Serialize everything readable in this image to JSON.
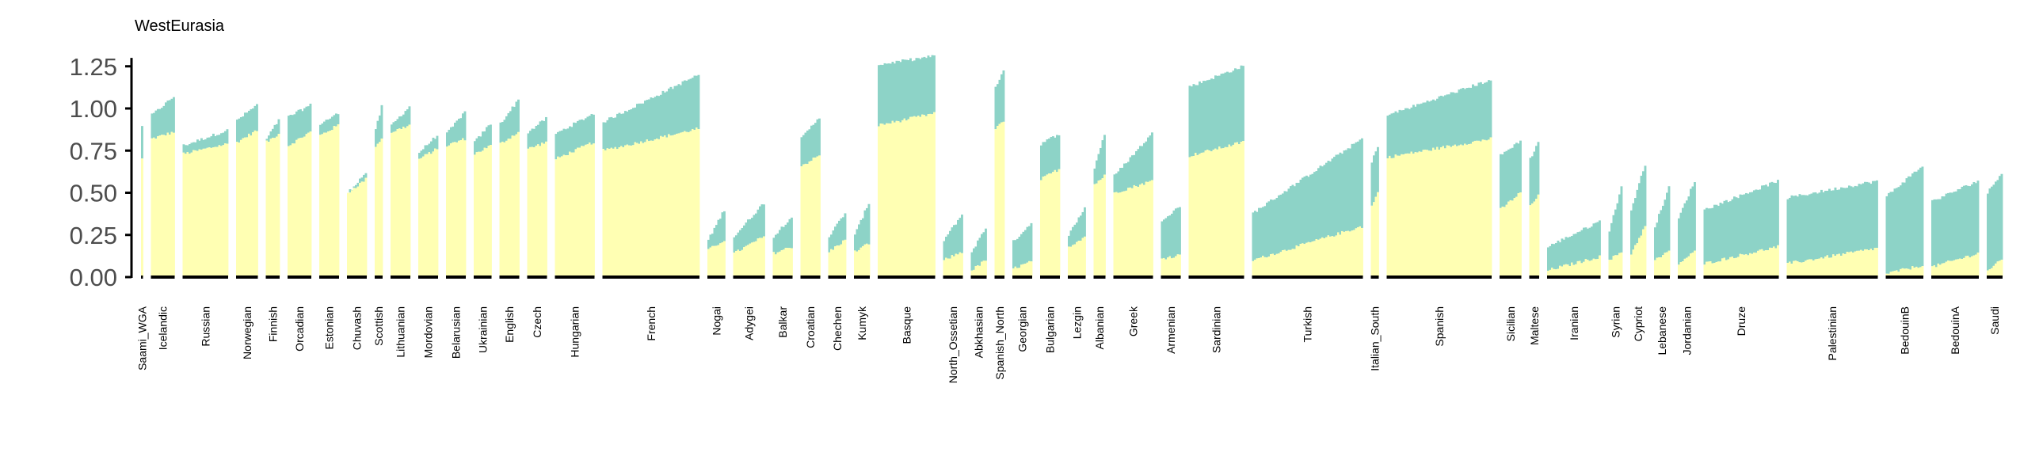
{
  "chart_data": {
    "type": "bar",
    "title": "WestEurasia",
    "xlabel": "",
    "ylabel": "",
    "ylim": [
      0,
      1.3
    ],
    "yticks": [
      "0.00",
      "0.25",
      "0.50",
      "0.75",
      "1.00",
      "1.25"
    ],
    "ytick_values": [
      0,
      0.25,
      0.5,
      0.75,
      1.0,
      1.25
    ],
    "grid": false,
    "legend": "none",
    "stacked": true,
    "series": [
      {
        "name": "",
        "color": "#ffffb3"
      },
      {
        "name": "",
        "color": "#8dd3c7"
      }
    ],
    "colors": {
      "lower": "#ffffb3",
      "upper": "#8dd3c7",
      "group_bar": "#000000"
    },
    "groups": [
      {
        "label": "Saami_WGA",
        "n": 1,
        "lower": [
          0.7,
          0.7
        ],
        "total": [
          0.9,
          0.9
        ]
      },
      {
        "label": "Icelandic",
        "n": 12,
        "lower": [
          0.82,
          0.86
        ],
        "total": [
          0.96,
          1.07
        ]
      },
      {
        "label": "Russian",
        "n": 23,
        "lower": [
          0.73,
          0.79
        ],
        "total": [
          0.78,
          0.87
        ]
      },
      {
        "label": "Norwegian",
        "n": 11,
        "lower": [
          0.8,
          0.87
        ],
        "total": [
          0.93,
          1.02
        ]
      },
      {
        "label": "Finnish",
        "n": 7,
        "lower": [
          0.8,
          0.85
        ],
        "total": [
          0.82,
          0.93
        ]
      },
      {
        "label": "Orcadian",
        "n": 12,
        "lower": [
          0.78,
          0.86
        ],
        "total": [
          0.95,
          1.02
        ]
      },
      {
        "label": "Estonian",
        "n": 10,
        "lower": [
          0.84,
          0.9
        ],
        "total": [
          0.91,
          0.97
        ]
      },
      {
        "label": "Chuvash",
        "n": 10,
        "lower": [
          0.5,
          0.58
        ],
        "total": [
          0.5,
          0.62
        ]
      },
      {
        "label": "Scottish",
        "n": 4,
        "lower": [
          0.78,
          0.82
        ],
        "total": [
          0.87,
          1.01
        ]
      },
      {
        "label": "Lithuanian",
        "n": 10,
        "lower": [
          0.86,
          0.9
        ],
        "total": [
          0.9,
          1.01
        ]
      },
      {
        "label": "Mordovian",
        "n": 10,
        "lower": [
          0.7,
          0.76
        ],
        "total": [
          0.74,
          0.84
        ]
      },
      {
        "label": "Belarusian",
        "n": 10,
        "lower": [
          0.78,
          0.82
        ],
        "total": [
          0.85,
          0.98
        ]
      },
      {
        "label": "Ukrainian",
        "n": 9,
        "lower": [
          0.73,
          0.78
        ],
        "total": [
          0.8,
          0.91
        ]
      },
      {
        "label": "English",
        "n": 10,
        "lower": [
          0.79,
          0.86
        ],
        "total": [
          0.91,
          1.05
        ]
      },
      {
        "label": "Czech",
        "n": 10,
        "lower": [
          0.76,
          0.8
        ],
        "total": [
          0.86,
          0.94
        ]
      },
      {
        "label": "Hungarian",
        "n": 20,
        "lower": [
          0.7,
          0.8
        ],
        "total": [
          0.85,
          0.97
        ]
      },
      {
        "label": "French",
        "n": 49,
        "lower": [
          0.75,
          0.88
        ],
        "total": [
          0.92,
          1.2
        ]
      },
      {
        "label": "Nogai",
        "n": 9,
        "lower": [
          0.16,
          0.22
        ],
        "total": [
          0.22,
          0.4
        ]
      },
      {
        "label": "Adygei",
        "n": 16,
        "lower": [
          0.14,
          0.24
        ],
        "total": [
          0.24,
          0.44
        ]
      },
      {
        "label": "Balkar",
        "n": 10,
        "lower": [
          0.14,
          0.18
        ],
        "total": [
          0.24,
          0.36
        ]
      },
      {
        "label": "Croatian",
        "n": 10,
        "lower": [
          0.66,
          0.72
        ],
        "total": [
          0.82,
          0.95
        ]
      },
      {
        "label": "Chechen",
        "n": 9,
        "lower": [
          0.15,
          0.22
        ],
        "total": [
          0.24,
          0.38
        ]
      },
      {
        "label": "Kumyk",
        "n": 8,
        "lower": [
          0.15,
          0.2
        ],
        "total": [
          0.25,
          0.44
        ]
      },
      {
        "label": "Basque",
        "n": 29,
        "lower": [
          0.9,
          0.97
        ],
        "total": [
          1.26,
          1.31
        ]
      },
      {
        "label": "North_Ossetian",
        "n": 10,
        "lower": [
          0.1,
          0.15
        ],
        "total": [
          0.22,
          0.37
        ]
      },
      {
        "label": "Abkhasian",
        "n": 8,
        "lower": [
          0.04,
          0.1
        ],
        "total": [
          0.15,
          0.29
        ]
      },
      {
        "label": "Spanish_North",
        "n": 5,
        "lower": [
          0.88,
          0.92
        ],
        "total": [
          1.13,
          1.22
        ]
      },
      {
        "label": "Georgian",
        "n": 10,
        "lower": [
          0.05,
          0.09
        ],
        "total": [
          0.21,
          0.32
        ]
      },
      {
        "label": "Bulgarian",
        "n": 10,
        "lower": [
          0.58,
          0.64
        ],
        "total": [
          0.79,
          0.85
        ]
      },
      {
        "label": "Lezgin",
        "n": 9,
        "lower": [
          0.18,
          0.24
        ],
        "total": [
          0.25,
          0.41
        ]
      },
      {
        "label": "Albanian",
        "n": 6,
        "lower": [
          0.55,
          0.6
        ],
        "total": [
          0.65,
          0.85
        ]
      },
      {
        "label": "Greek",
        "n": 20,
        "lower": [
          0.5,
          0.57
        ],
        "total": [
          0.6,
          0.85
        ]
      },
      {
        "label": "Armenian",
        "n": 10,
        "lower": [
          0.11,
          0.13
        ],
        "total": [
          0.34,
          0.42
        ]
      },
      {
        "label": "Sardinian",
        "n": 28,
        "lower": [
          0.72,
          0.8
        ],
        "total": [
          1.13,
          1.25
        ]
      },
      {
        "label": "Turkish",
        "n": 56,
        "lower": [
          0.1,
          0.3
        ],
        "total": [
          0.38,
          0.82
        ]
      },
      {
        "label": "Italian_South",
        "n": 4,
        "lower": [
          0.42,
          0.5
        ],
        "total": [
          0.68,
          0.78
        ]
      },
      {
        "label": "Spanish",
        "n": 53,
        "lower": [
          0.71,
          0.82
        ],
        "total": [
          0.96,
          1.17
        ]
      },
      {
        "label": "Sicilian",
        "n": 11,
        "lower": [
          0.4,
          0.5
        ],
        "total": [
          0.72,
          0.81
        ]
      },
      {
        "label": "Maltese",
        "n": 5,
        "lower": [
          0.42,
          0.48
        ],
        "total": [
          0.7,
          0.8
        ]
      },
      {
        "label": "Iranian",
        "n": 27,
        "lower": [
          0.04,
          0.12
        ],
        "total": [
          0.18,
          0.33
        ]
      },
      {
        "label": "Syrian",
        "n": 7,
        "lower": [
          0.1,
          0.15
        ],
        "total": [
          0.28,
          0.53
        ]
      },
      {
        "label": "Cypriot",
        "n": 8,
        "lower": [
          0.14,
          0.3
        ],
        "total": [
          0.4,
          0.67
        ]
      },
      {
        "label": "Lebanese",
        "n": 8,
        "lower": [
          0.1,
          0.15
        ],
        "total": [
          0.3,
          0.53
        ]
      },
      {
        "label": "Jordanian",
        "n": 9,
        "lower": [
          0.08,
          0.15
        ],
        "total": [
          0.35,
          0.57
        ]
      },
      {
        "label": "Druze",
        "n": 38,
        "lower": [
          0.08,
          0.18
        ],
        "total": [
          0.4,
          0.57
        ]
      },
      {
        "label": "Palestinian",
        "n": 46,
        "lower": [
          0.08,
          0.17
        ],
        "total": [
          0.47,
          0.57
        ]
      },
      {
        "label": "BedouinB",
        "n": 19,
        "lower": [
          0.02,
          0.07
        ],
        "total": [
          0.48,
          0.66
        ]
      },
      {
        "label": "BedouinA",
        "n": 24,
        "lower": [
          0.06,
          0.14
        ],
        "total": [
          0.45,
          0.57
        ]
      },
      {
        "label": "Saudi",
        "n": 8,
        "lower": [
          0.04,
          0.1
        ],
        "total": [
          0.5,
          0.62
        ]
      }
    ],
    "xtick_labels": [
      "Saami_WGA",
      "Icelandic",
      "Russian",
      "Norwegian",
      "Finnish",
      "Orcadian",
      "Estonian",
      "Chuvash",
      "Scottish",
      "Lithuanian",
      "Mordovian",
      "Belarusian",
      "Ukrainian",
      "English",
      "Czech",
      "Hungarian",
      "French",
      "Nogai",
      "Adygei",
      "Balkar",
      "Croatian",
      "Chechen",
      "Kumyk",
      "Basque",
      "North_Ossetian",
      "Abkhasian",
      "Spanish_North",
      "Georgian",
      "Bulgarian",
      "Lezgin",
      "Albanian",
      "Greek",
      "Armenian",
      "Sardinian",
      "Turkish",
      "Italian_South",
      "Spanish",
      "Sicilian",
      "Maltese",
      "Iranian",
      "Syrian",
      "Cypriot",
      "Lebanese",
      "Jordanian",
      "Druze",
      "Palestinian",
      "BedouinB",
      "BedouinA",
      "Saudi"
    ]
  }
}
